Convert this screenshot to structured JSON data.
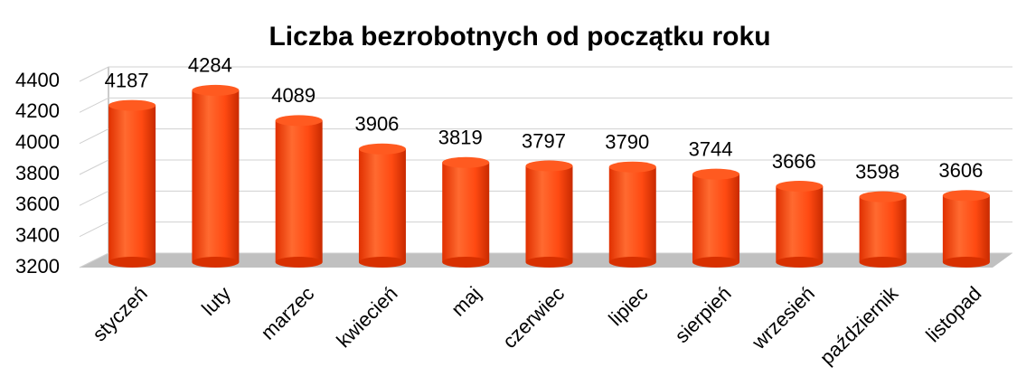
{
  "chart_data": {
    "type": "bar",
    "title": "Liczba bezrobotnych od początku roku",
    "categories": [
      "styczeń",
      "luty",
      "marzec",
      "kwiecień",
      "maj",
      "czerwiec",
      "lipiec",
      "sierpień",
      "wrzesień",
      "październik",
      "listopad"
    ],
    "values": [
      4187,
      4284,
      4089,
      3906,
      3819,
      3797,
      3790,
      3744,
      3666,
      3598,
      3606
    ],
    "color": "#ff4a12",
    "ylim": [
      3200,
      4400
    ],
    "yticks": [
      3200,
      3400,
      3600,
      3800,
      4000,
      4200,
      4400
    ],
    "grid": true
  }
}
